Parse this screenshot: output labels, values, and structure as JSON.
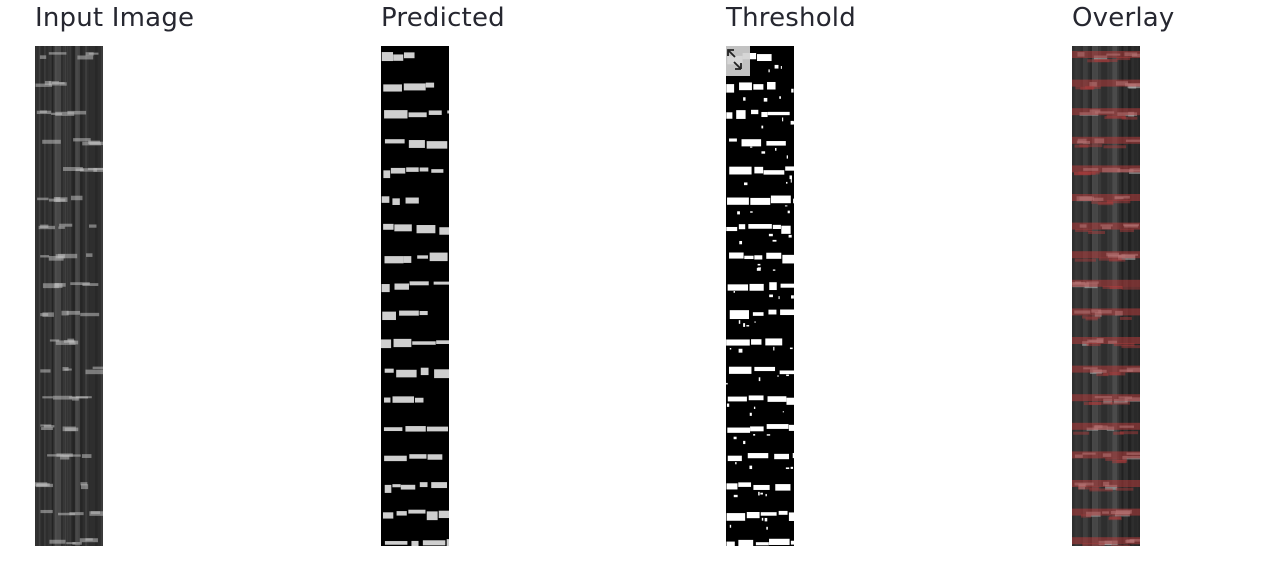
{
  "panels": [
    {
      "title": "Input Image",
      "image": "grayscale-sample-strip"
    },
    {
      "title": "Predicted",
      "image": "prediction-mask-strip"
    },
    {
      "title": "Threshold",
      "image": "binary-threshold-strip"
    },
    {
      "title": "Overlay",
      "image": "red-overlay-strip"
    }
  ],
  "toolbar": {
    "expand_icon": "expand-fullscreen-icon"
  },
  "colors": {
    "title_text": "#262730",
    "background": "#ffffff",
    "strip_dark": "#000000",
    "strip_gray": "#3a3a3a",
    "mask_white": "#ffffff",
    "overlay_red": "#b23b3b"
  }
}
